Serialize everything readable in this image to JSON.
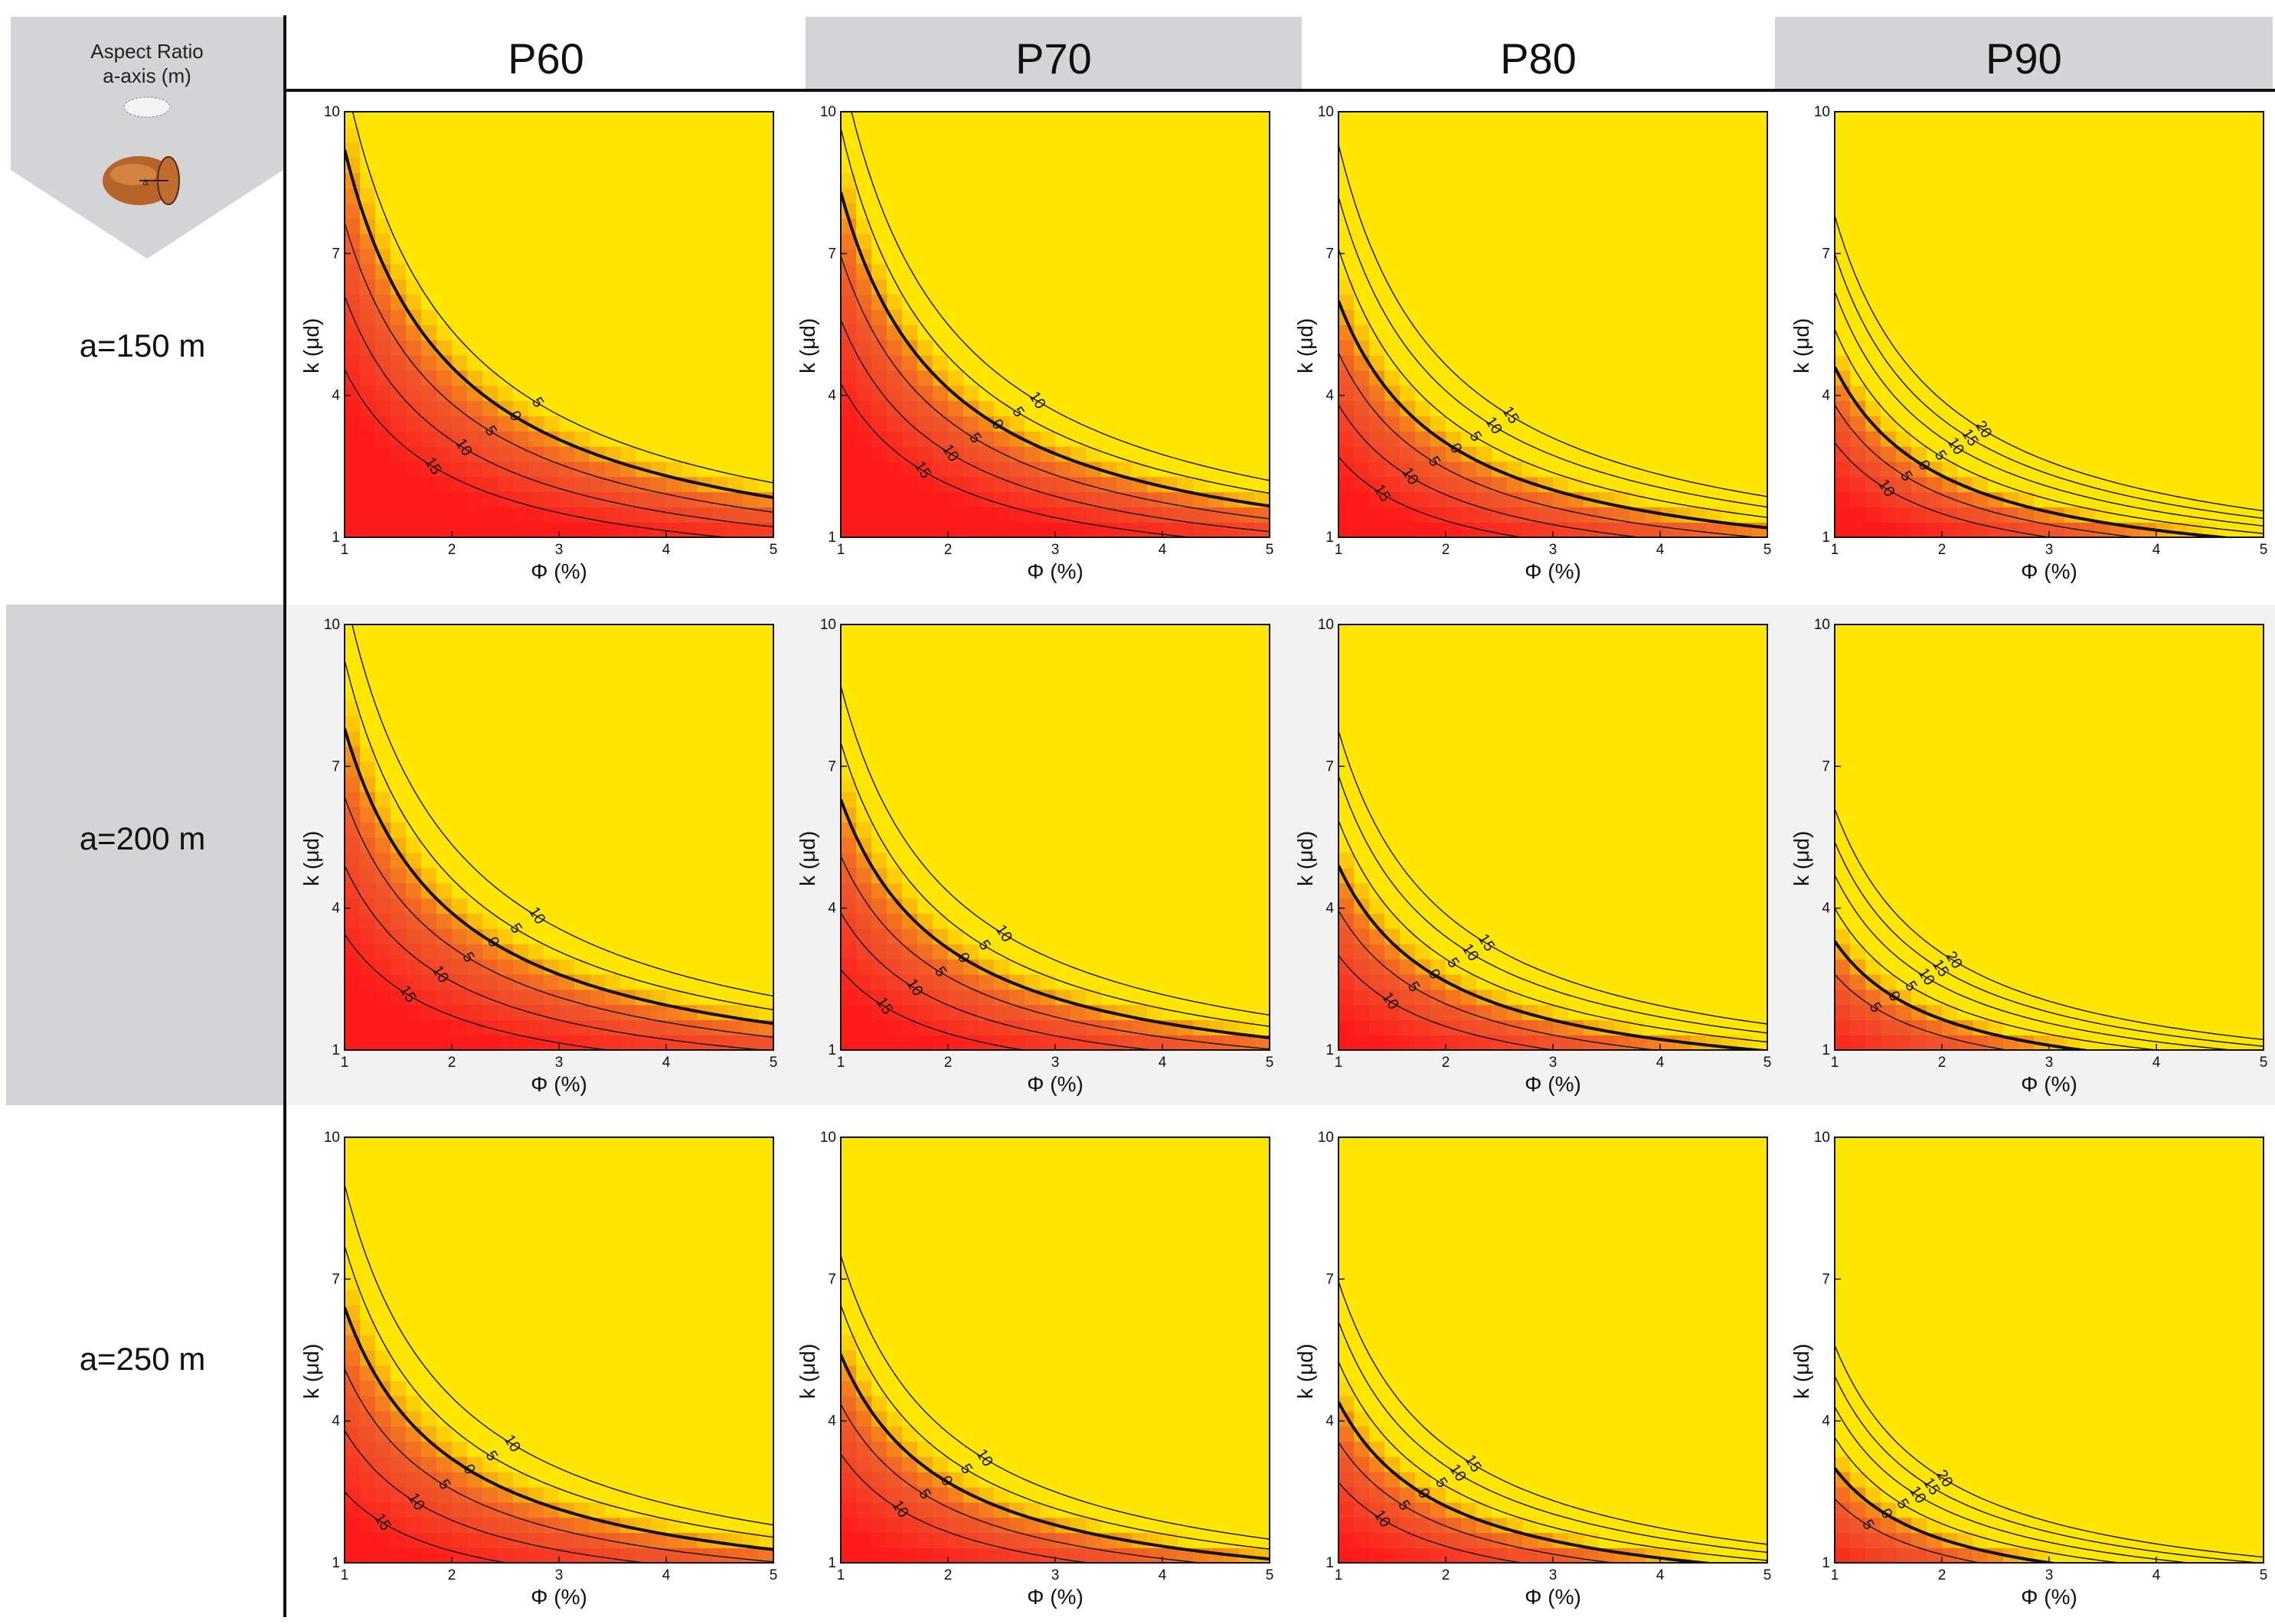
{
  "corner": {
    "line1": "Aspect Ratio",
    "line2": "a-axis (m)",
    "icon_name": "ellipsoid-icon",
    "ellipsoid_label": "a"
  },
  "columns": [
    "P60",
    "P70",
    "P80",
    "P90"
  ],
  "rows": [
    "a=150 m",
    "a=200 m",
    "a=250 m"
  ],
  "colors": {
    "red": "#ff1a1a",
    "orange": "#f0522a",
    "yellow": "#ffe600",
    "header_gray": "#d4d4d6",
    "row_band_gray": "#d4d4d6",
    "row_band_light": "#f2f2f3"
  },
  "chart_data": [
    {
      "id": "r1c1",
      "row": "a=150 m",
      "col": "P60",
      "type": "heatmap",
      "xlabel": "Φ (%)",
      "ylabel": "k (μd)",
      "xlim": [
        1,
        5
      ],
      "ylim": [
        1,
        10
      ],
      "xticks": [
        1,
        2,
        3,
        4,
        5
      ],
      "yticks": [
        1,
        4,
        7,
        10
      ],
      "zero_C": 9.2,
      "contour_step_C": 1.55,
      "contour_levels": [
        15,
        10,
        5,
        0,
        5
      ],
      "grid": false
    },
    {
      "id": "r1c2",
      "row": "a=150 m",
      "col": "P70",
      "type": "heatmap",
      "xlabel": "Φ (%)",
      "ylabel": "k (μd)",
      "xlim": [
        1,
        5
      ],
      "ylim": [
        1,
        10
      ],
      "xticks": [
        1,
        2,
        3,
        4,
        5
      ],
      "yticks": [
        1,
        4,
        7,
        10
      ],
      "zero_C": 8.3,
      "contour_step_C": 1.35,
      "contour_levels": [
        15,
        10,
        5,
        0,
        5,
        10
      ],
      "grid": false
    },
    {
      "id": "r1c3",
      "row": "a=150 m",
      "col": "P80",
      "type": "heatmap",
      "xlabel": "Φ (%)",
      "ylabel": "k (μd)",
      "xlim": [
        1,
        5
      ],
      "ylim": [
        1,
        10
      ],
      "xticks": [
        1,
        2,
        3,
        4,
        5
      ],
      "yticks": [
        1,
        4,
        7,
        10
      ],
      "zero_C": 6.0,
      "contour_step_C": 1.1,
      "contour_levels": [
        15,
        10,
        5,
        0,
        5,
        10,
        15
      ],
      "grid": false
    },
    {
      "id": "r1c4",
      "row": "a=150 m",
      "col": "P90",
      "type": "heatmap",
      "xlabel": "Φ (%)",
      "ylabel": "k (μd)",
      "xlim": [
        1,
        5
      ],
      "ylim": [
        1,
        10
      ],
      "xticks": [
        1,
        2,
        3,
        4,
        5
      ],
      "yticks": [
        1,
        4,
        7,
        10
      ],
      "zero_C": 4.6,
      "contour_step_C": 0.8,
      "contour_levels": [
        10,
        5,
        0,
        5,
        10,
        15,
        20
      ],
      "grid": false
    },
    {
      "id": "r2c1",
      "row": "a=200 m",
      "col": "P60",
      "type": "heatmap",
      "xlabel": "Φ (%)",
      "ylabel": "k (μd)",
      "xlim": [
        1,
        5
      ],
      "ylim": [
        1,
        10
      ],
      "xticks": [
        1,
        2,
        3,
        4,
        5
      ],
      "yticks": [
        1,
        4,
        7,
        10
      ],
      "zero_C": 7.8,
      "contour_step_C": 1.45,
      "contour_levels": [
        15,
        10,
        5,
        0,
        5,
        10
      ],
      "grid": false
    },
    {
      "id": "r2c2",
      "row": "a=200 m",
      "col": "P70",
      "type": "heatmap",
      "xlabel": "Φ (%)",
      "ylabel": "k (μd)",
      "xlim": [
        1,
        5
      ],
      "ylim": [
        1,
        10
      ],
      "xticks": [
        1,
        2,
        3,
        4,
        5
      ],
      "yticks": [
        1,
        4,
        7,
        10
      ],
      "zero_C": 6.3,
      "contour_step_C": 1.2,
      "contour_levels": [
        15,
        10,
        5,
        0,
        5,
        10
      ],
      "grid": false
    },
    {
      "id": "r2c3",
      "row": "a=200 m",
      "col": "P80",
      "type": "heatmap",
      "xlabel": "Φ (%)",
      "ylabel": "k (μd)",
      "xlim": [
        1,
        5
      ],
      "ylim": [
        1,
        10
      ],
      "xticks": [
        1,
        2,
        3,
        4,
        5
      ],
      "yticks": [
        1,
        4,
        7,
        10
      ],
      "zero_C": 4.9,
      "contour_step_C": 0.95,
      "contour_levels": [
        10,
        5,
        0,
        5,
        10,
        15
      ],
      "grid": false
    },
    {
      "id": "r2c4",
      "row": "a=200 m",
      "col": "P90",
      "type": "heatmap",
      "xlabel": "Φ (%)",
      "ylabel": "k (μd)",
      "xlim": [
        1,
        5
      ],
      "ylim": [
        1,
        10
      ],
      "xticks": [
        1,
        2,
        3,
        4,
        5
      ],
      "yticks": [
        1,
        4,
        7,
        10
      ],
      "zero_C": 3.3,
      "contour_step_C": 0.7,
      "contour_levels": [
        5,
        0,
        5,
        10,
        15,
        20
      ],
      "grid": false
    },
    {
      "id": "r3c1",
      "row": "a=250 m",
      "col": "P60",
      "type": "heatmap",
      "xlabel": "Φ (%)",
      "ylabel": "k (μd)",
      "xlim": [
        1,
        5
      ],
      "ylim": [
        1,
        10
      ],
      "xticks": [
        1,
        2,
        3,
        4,
        5
      ],
      "yticks": [
        1,
        4,
        7,
        10
      ],
      "zero_C": 6.4,
      "contour_step_C": 1.3,
      "contour_levels": [
        15,
        10,
        5,
        0,
        5,
        10
      ],
      "grid": false
    },
    {
      "id": "r3c2",
      "row": "a=250 m",
      "col": "P70",
      "type": "heatmap",
      "xlabel": "Φ (%)",
      "ylabel": "k (μd)",
      "xlim": [
        1,
        5
      ],
      "ylim": [
        1,
        10
      ],
      "xticks": [
        1,
        2,
        3,
        4,
        5
      ],
      "yticks": [
        1,
        4,
        7,
        10
      ],
      "zero_C": 5.4,
      "contour_step_C": 1.05,
      "contour_levels": [
        10,
        5,
        0,
        5,
        10
      ],
      "grid": false
    },
    {
      "id": "r3c3",
      "row": "a=250 m",
      "col": "P80",
      "type": "heatmap",
      "xlabel": "Φ (%)",
      "ylabel": "k (μd)",
      "xlim": [
        1,
        5
      ],
      "ylim": [
        1,
        10
      ],
      "xticks": [
        1,
        2,
        3,
        4,
        5
      ],
      "yticks": [
        1,
        4,
        7,
        10
      ],
      "zero_C": 4.4,
      "contour_step_C": 0.85,
      "contour_levels": [
        10,
        5,
        0,
        5,
        10,
        15
      ],
      "grid": false
    },
    {
      "id": "r3c4",
      "row": "a=250 m",
      "col": "P90",
      "type": "heatmap",
      "xlabel": "Φ (%)",
      "ylabel": "k (μd)",
      "xlim": [
        1,
        5
      ],
      "ylim": [
        1,
        10
      ],
      "xticks": [
        1,
        2,
        3,
        4,
        5
      ],
      "yticks": [
        1,
        4,
        7,
        10
      ],
      "zero_C": 3.0,
      "contour_step_C": 0.65,
      "contour_levels": [
        5,
        0,
        5,
        10,
        15,
        20
      ],
      "grid": false
    }
  ]
}
